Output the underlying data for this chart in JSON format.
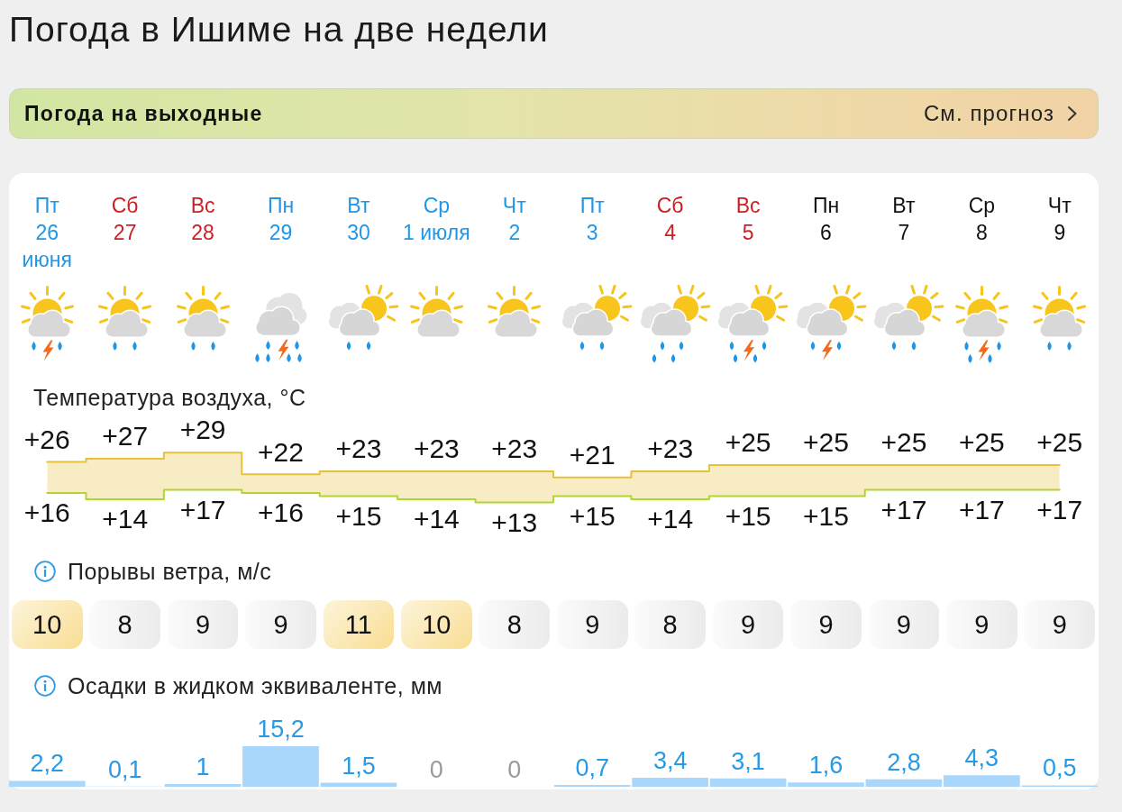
{
  "chart_data": [
    {
      "type": "other",
      "title": "Погода в Ишиме на две недели",
      "annotations": [
        "Погода на выходные",
        "См. прогноз"
      ]
    },
    {
      "type": "step",
      "title": "Температура воздуха, °C",
      "categories": [
        "Пт\n26\nиюня",
        "Сб\n27",
        "Вс\n28",
        "Пн\n29",
        "Вт\n30",
        "Ср\n1 июля",
        "Чт\n2",
        "Пт\n3",
        "Сб\n4",
        "Вс\n5",
        "Пн\n6",
        "Вт\n7",
        "Ср\n8",
        "Чт\n9"
      ],
      "tick_labels": "x",
      "marker": "none",
      "series": [
        {
          "color": "#e8c13c",
          "values": [
            26,
            27,
            29,
            22,
            23,
            23,
            23,
            21,
            23,
            25,
            25,
            25,
            25,
            25
          ],
          "value_labels": [
            "+26",
            "+27",
            "+29",
            "+22",
            "+23",
            "+23",
            "+23",
            "+21",
            "+23",
            "+25",
            "+25",
            "+25",
            "+25",
            "+25"
          ],
          "upper": [
            26,
            27,
            29,
            22,
            23,
            23,
            23,
            21,
            23,
            25,
            25,
            25,
            25,
            25
          ],
          "lower": [
            16,
            14,
            17,
            16,
            15,
            14,
            13,
            15,
            14,
            15,
            15,
            17,
            17,
            17
          ]
        },
        {
          "color": "#a8d930",
          "values": [
            16,
            14,
            17,
            16,
            15,
            14,
            13,
            15,
            14,
            15,
            15,
            17,
            17,
            17
          ],
          "value_labels": [
            "+16",
            "+14",
            "+17",
            "+16",
            "+15",
            "+14",
            "+13",
            "+15",
            "+14",
            "+15",
            "+15",
            "+17",
            "+17",
            "+17"
          ]
        }
      ]
    },
    {
      "type": "other",
      "title": "Порывы ветра, м/с",
      "data_labels": true,
      "values": [
        10,
        8,
        9,
        9,
        11,
        10,
        8,
        9,
        8,
        9,
        9,
        9,
        9,
        9
      ]
    },
    {
      "type": "bar",
      "title": "Осадки в жидком эквиваленте, мм",
      "categories": [
        null,
        null,
        null,
        null,
        null,
        null,
        null,
        null,
        null,
        null,
        null,
        null,
        null,
        null
      ],
      "tick_labels": false,
      "color": "#a9d6fb",
      "values": [
        2.2,
        0.1,
        1,
        15.2,
        1.5,
        0,
        0,
        0.7,
        3.4,
        3.1,
        1.6,
        2.8,
        4.3,
        0.5
      ],
      "value_labels": [
        "2,2",
        "0,1",
        "1",
        "15,2",
        "1,5",
        "0",
        "0",
        "0,7",
        "3,4",
        "3,1",
        "1,6",
        "2,8",
        "4,3",
        "0,5"
      ]
    }
  ]
}
